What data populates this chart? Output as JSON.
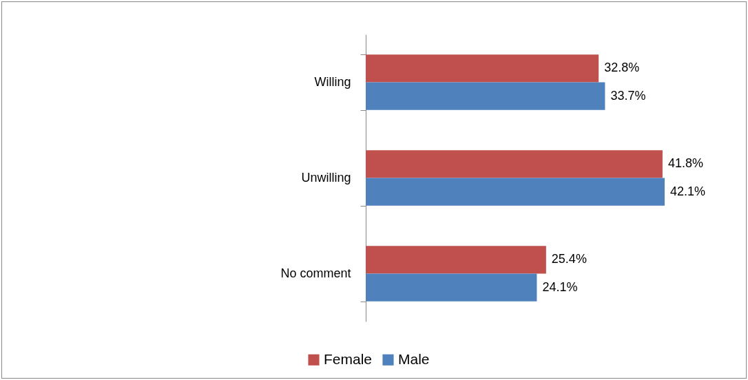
{
  "chart_data": {
    "type": "bar",
    "orientation": "horizontal",
    "categories": [
      "Willing",
      "Unwilling",
      "No comment"
    ],
    "series": [
      {
        "name": "Female",
        "color": "#c0504d",
        "values": [
          32.8,
          41.8,
          25.4
        ],
        "value_labels": [
          "32.8%",
          "41.8%",
          "25.4%"
        ]
      },
      {
        "name": "Male",
        "color": "#4f81bd",
        "values": [
          33.7,
          42.1,
          24.1
        ],
        "value_labels": [
          "33.7%",
          "42.1%",
          "24.1%"
        ]
      }
    ],
    "grid": false,
    "legend": "bottom"
  }
}
